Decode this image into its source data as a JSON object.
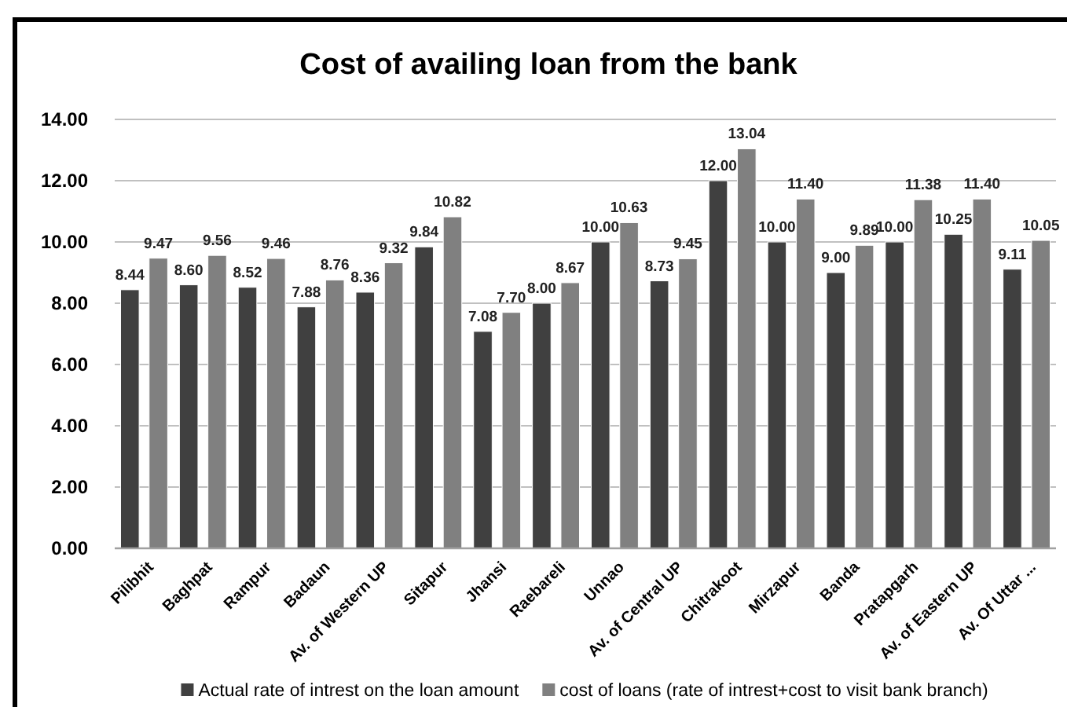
{
  "chart_data": {
    "type": "bar",
    "title": "Cost of availing loan from the bank",
    "categories": [
      "Pilibhit",
      "Baghpat",
      "Rampur",
      "Badaun",
      "Av. of Western UP",
      "Sitapur",
      "Jhansi",
      "Raebareli",
      "Unnao",
      "Av. of Central UP",
      "Chitrakoot",
      "Mirzapur",
      "Banda",
      "Pratapgarh",
      "Av. of Eastern UP",
      "Av. Of Uttar ..."
    ],
    "series": [
      {
        "name": "Actual rate of intrest on the loan amount",
        "color": "#404040",
        "values": [
          8.44,
          8.6,
          8.52,
          7.88,
          8.36,
          9.84,
          7.08,
          8.0,
          10.0,
          8.73,
          12.0,
          10.0,
          9.0,
          10.0,
          10.25,
          9.11
        ],
        "value_labels": [
          "8.44",
          "8.60",
          "8.52",
          "7.88",
          "8.36",
          "9.84",
          "7.08",
          "8.00",
          "10.00",
          "8.73",
          "12.00",
          "10.00",
          "9.00",
          "10.00",
          "10.25",
          "9.11"
        ]
      },
      {
        "name": "cost of loans (rate of intrest+cost to visit bank branch)",
        "color": "#808080",
        "values": [
          9.47,
          9.56,
          9.46,
          8.76,
          9.32,
          10.82,
          7.7,
          8.67,
          10.63,
          9.45,
          13.04,
          11.4,
          9.89,
          11.38,
          11.4,
          10.05
        ],
        "value_labels": [
          "9.47",
          "9.56",
          "9.46",
          "8.76",
          "9.32",
          "10.82",
          "7.70",
          "8.67",
          "10.63",
          "9.45",
          "13.04",
          "11.40",
          "9.89",
          "11.38",
          "11.40",
          "10.05"
        ]
      }
    ],
    "ylim": [
      0,
      14
    ],
    "yticks": [
      {
        "value": 0,
        "label": "0.00"
      },
      {
        "value": 2,
        "label": "2.00"
      },
      {
        "value": 4,
        "label": "4.00"
      },
      {
        "value": 6,
        "label": "6.00"
      },
      {
        "value": 8,
        "label": "8.00"
      },
      {
        "value": 10,
        "label": "10.00"
      },
      {
        "value": 12,
        "label": "12.00"
      },
      {
        "value": 14,
        "label": "14.00"
      }
    ],
    "grid": "y",
    "legend": "bottom"
  }
}
